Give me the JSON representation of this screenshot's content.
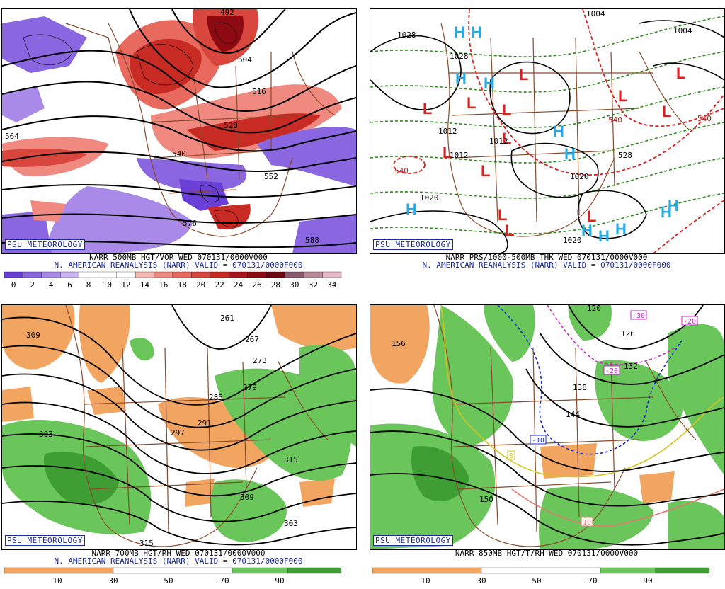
{
  "panels": [
    {
      "id": "p1",
      "credit": "PSU METEOROLOGY",
      "caption_line1": "NARR 500MB HGT/VOR WED 070131/0000V000",
      "caption_line2": "N. AMERICAN REANALYSIS (NARR) VALID = 070131/0000F000",
      "colorbar_ticks": [
        "0",
        "2",
        "4",
        "6",
        "8",
        "10",
        "12",
        "14",
        "16",
        "18",
        "20",
        "22",
        "24",
        "26",
        "28",
        "30",
        "32",
        "34"
      ],
      "colorbar_colors": [
        "#6a3fd8",
        "#8a66e0",
        "#a98ae8",
        "#c9b3f0",
        "#ffffff",
        "#ffffff",
        "#ffffff",
        "#f5b9b2",
        "#f08a80",
        "#e86a5f",
        "#d9463d",
        "#c82a24",
        "#a9151a",
        "#8e0a12",
        "#6e0510",
        "#8c5a6e",
        "#b98a9c",
        "#e6b8c8"
      ],
      "contour_labels": [
        "492",
        "504",
        "516",
        "528",
        "540",
        "552",
        "564",
        "576",
        "588"
      ]
    },
    {
      "id": "p2",
      "credit": "PSU METEOROLOGY",
      "caption_line1": "NARR PRS/1000-500MB THK WED 070131/0000V000",
      "caption_line2": "N. AMERICAN REANALYSIS (NARR) VALID = 070131/0000F000",
      "contour_labels": [
        "1004",
        "1004",
        "1012",
        "1012",
        "1020",
        "1020",
        "1020",
        "1028",
        "540",
        "540",
        "540",
        "528",
        "1012",
        "1028"
      ],
      "high_symbol": "H",
      "low_symbol": "L"
    },
    {
      "id": "p3",
      "credit": "PSU METEOROLOGY",
      "caption_line1": "NARR 700MB HGT/RH WED 070131/0000V000",
      "caption_line2": "N. AMERICAN REANALYSIS (NARR) VALID = 070131/0000F000",
      "colorbar_ticks": [
        "10",
        "30",
        "50",
        "70",
        "90"
      ],
      "contour_labels": [
        "261",
        "267",
        "273",
        "279",
        "285",
        "291",
        "297",
        "303",
        "309",
        "315",
        "309",
        "315",
        "303"
      ]
    },
    {
      "id": "p4",
      "credit": "PSU METEOROLOGY",
      "caption_line1": "NARR 850MB HGT/T/RH WED 070131/0000V000",
      "caption_line2": "",
      "colorbar_ticks": [
        "10",
        "30",
        "50",
        "70",
        "90"
      ],
      "contour_labels": [
        "156",
        "120",
        "126",
        "132",
        "138",
        "144",
        "150"
      ],
      "temp_labels": [
        "-30",
        "-20",
        "-20",
        "-10",
        "0",
        "10"
      ]
    }
  ]
}
